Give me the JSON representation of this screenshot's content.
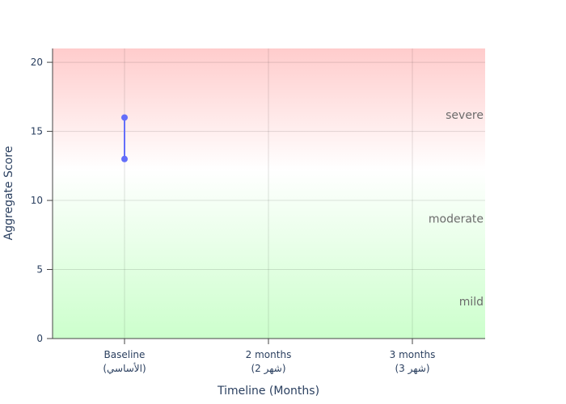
{
  "chart_data": {
    "type": "line",
    "xlabel": "Timeline (Months)",
    "ylabel": "Aggregate Score",
    "ylim": [
      0,
      21
    ],
    "yticks": [
      0,
      5,
      10,
      15,
      20
    ],
    "categories": [
      {
        "line1": "Baseline",
        "line2": "(الأساسي)"
      },
      {
        "line1": "2 months",
        "line2": "(شهر 2)"
      },
      {
        "line1": "3 months",
        "line2": "(شهر 3)"
      }
    ],
    "series": [
      {
        "color": "#636efa",
        "points": [
          {
            "x": 0,
            "y": 16
          },
          {
            "x": 0,
            "y": 13
          }
        ]
      }
    ],
    "bands": [
      {
        "label": "severe",
        "y": 16.2
      },
      {
        "label": "moderate",
        "y": 8.7
      },
      {
        "label": "mild",
        "y": 2.7
      }
    ],
    "grid": true,
    "background_gradient": {
      "top": "#ffcccc",
      "middle": "#ffffff",
      "bottom": "#ccffcc"
    }
  }
}
